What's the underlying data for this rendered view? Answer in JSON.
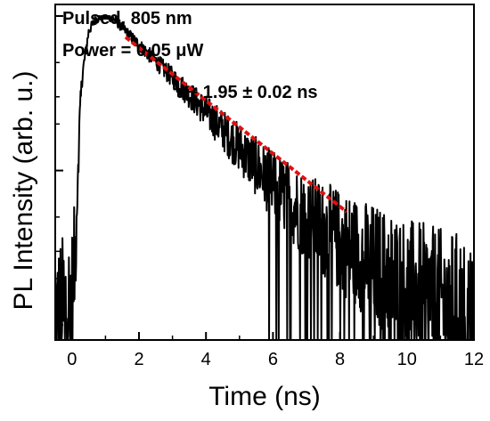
{
  "chart_data": {
    "type": "line",
    "xlabel": "Time (ns)",
    "ylabel": "PL Intensity (arb. u.)",
    "xlim": [
      -0.5,
      12
    ],
    "x_ticks": [
      0,
      2,
      4,
      6,
      8,
      10,
      12
    ],
    "x_tick_labels": [
      "0",
      "2",
      "4",
      "6",
      "8",
      "10",
      "12"
    ],
    "yscale": "log",
    "y_tick_labels_shown": false,
    "grid": false,
    "legend": "none",
    "annotations": {
      "line1": "Pulsed, 805 nm",
      "line2": "Power = 0.05 μW",
      "tau": "τ ~ 1.95 ± 0.02 ns"
    },
    "series": [
      {
        "kind": "measured_decay",
        "color": "#000000",
        "rise_start_x": 0.1,
        "peak_x": 0.9,
        "points": [
          [
            -0.5,
            0.01
          ],
          [
            -0.3,
            0.012
          ],
          [
            0.0,
            0.015
          ],
          [
            0.1,
            0.03
          ],
          [
            0.2,
            0.15
          ],
          [
            0.3,
            0.4
          ],
          [
            0.5,
            0.8
          ],
          [
            0.7,
            0.95
          ],
          [
            0.9,
            1.0
          ],
          [
            1.2,
            0.98
          ],
          [
            1.6,
            0.8
          ],
          [
            2.0,
            0.65
          ],
          [
            3.0,
            0.4
          ],
          [
            4.0,
            0.24
          ],
          [
            5.0,
            0.14
          ],
          [
            6.0,
            0.08
          ],
          [
            7.0,
            0.05
          ],
          [
            8.0,
            0.035
          ],
          [
            9.0,
            0.025
          ],
          [
            10.0,
            0.018
          ],
          [
            11.0,
            0.014
          ],
          [
            12.0,
            0.012
          ]
        ]
      },
      {
        "kind": "exponential_fit",
        "color": "#e01010",
        "style": "dotted",
        "points": [
          [
            1.6,
            0.73
          ],
          [
            8.2,
            0.054
          ]
        ]
      }
    ]
  }
}
